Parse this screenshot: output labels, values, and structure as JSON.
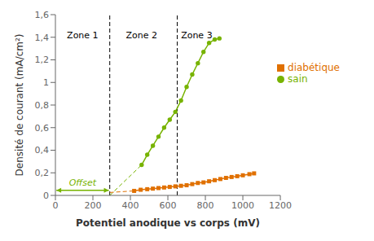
{
  "chart_data": {
    "type": "line",
    "xlabel": "Potentiel anodique vs corps (mV)",
    "ylabel": "Densité de courant (mA/cm²)",
    "xlim": [
      0,
      1200
    ],
    "ylim": [
      0,
      1.6
    ],
    "xticks": [
      0,
      200,
      400,
      600,
      800,
      1000,
      1200
    ],
    "yticks": [
      0,
      {
        "value": 0.2,
        "label": "0,2"
      },
      {
        "value": 0.4,
        "label": "0,4"
      },
      {
        "value": 0.6,
        "label": "0,6"
      },
      {
        "value": 0.8,
        "label": "0,8"
      },
      1,
      {
        "value": 1.2,
        "label": "1,2"
      },
      {
        "value": 1.4,
        "label": "1,4"
      },
      {
        "value": 1.6,
        "label": "1,6"
      }
    ],
    "grid": false,
    "legend": "right",
    "series": [
      {
        "name": "sain",
        "color": "#77b300",
        "marker": "o",
        "line_style": "solid",
        "x": [
          460,
          490,
          520,
          550,
          580,
          610,
          640,
          670,
          700,
          730,
          760,
          790,
          820,
          850,
          875
        ],
        "values": [
          0.27,
          0.36,
          0.44,
          0.52,
          0.6,
          0.67,
          0.74,
          0.84,
          0.96,
          1.07,
          1.17,
          1.27,
          1.35,
          1.38,
          1.39
        ]
      },
      {
        "name": "diabétique",
        "color": "#e07000",
        "marker": "s",
        "line_style": "solid",
        "x": [
          420,
          455,
          490,
          520,
          550,
          580,
          610,
          640,
          670,
          700,
          730,
          760,
          790,
          820,
          850,
          880,
          910,
          940,
          970,
          1000,
          1035,
          1060
        ],
        "values": [
          0.04,
          0.05,
          0.055,
          0.06,
          0.065,
          0.07,
          0.075,
          0.08,
          0.085,
          0.09,
          0.1,
          0.11,
          0.115,
          0.125,
          0.135,
          0.145,
          0.155,
          0.163,
          0.17,
          0.178,
          0.188,
          0.195
        ]
      }
    ],
    "extensions": [
      {
        "color": "#77b300",
        "line_style": "dashed",
        "x": [
          290,
          460
        ],
        "values": [
          0.0,
          0.27
        ]
      },
      {
        "color": "#e07000",
        "line_style": "dashed",
        "x": [
          290,
          420
        ],
        "values": [
          0.026,
          0.04
        ]
      }
    ],
    "vlines": [
      {
        "x": 290,
        "color": "#000000",
        "line_style": "dashed"
      },
      {
        "x": 650,
        "color": "#000000",
        "line_style": "dashed"
      }
    ],
    "annotations": [
      {
        "text": "Zone 1",
        "x": 145,
        "y": 1.45
      },
      {
        "text": "Zone 2",
        "x": 460,
        "y": 1.45
      },
      {
        "text": "Zone 3",
        "x": 670,
        "y": 1.45
      }
    ],
    "offset_arrow": {
      "x": [
        5,
        285
      ],
      "y": 0.045,
      "color": "#77b300",
      "text": "Offset",
      "text_x": 145,
      "text_y": 0.09
    }
  }
}
